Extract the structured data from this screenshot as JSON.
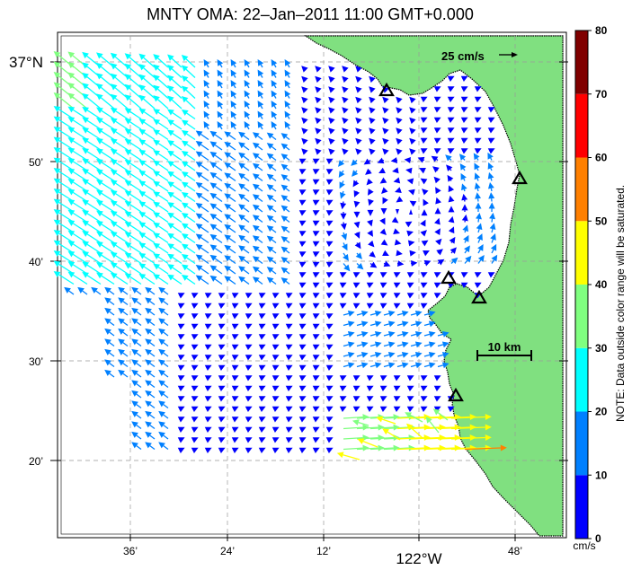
{
  "title": "MNTY OMA: 22–Jan–2011 11:00 GMT+0.000",
  "lat_labels": [
    "37°N",
    "50’",
    "40’",
    "30’",
    "20’"
  ],
  "lon_labels": [
    "36’",
    "24’",
    "12’",
    "122°W",
    "48’"
  ],
  "reference_vector": {
    "label": "25 cm/s"
  },
  "distance_scale": {
    "label": "10 km"
  },
  "colorbar": {
    "ticks": [
      "0",
      "10",
      "20",
      "30",
      "40",
      "50",
      "60",
      "70",
      "80"
    ],
    "unit": "cm/s",
    "colors": [
      "#0000ff",
      "#0080ff",
      "#00ffff",
      "#80ff80",
      "#ffff00",
      "#ff8000",
      "#ff0000",
      "#800000"
    ]
  },
  "note": "NOTE: Data outside color range will be saturated.",
  "colors": {
    "land": "#80e080",
    "coastline": "#000000",
    "grid": "#999999"
  }
}
